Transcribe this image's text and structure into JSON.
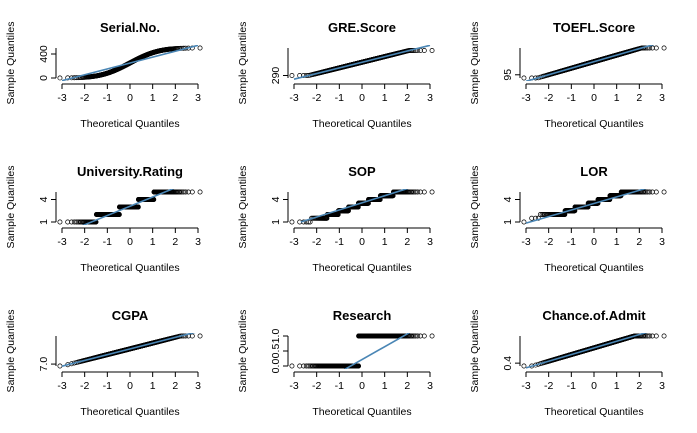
{
  "figure": {
    "xlabel": "Theoretical Quantiles",
    "ylabel": "Sample Quantiles"
  },
  "colors": {
    "points": "#000000",
    "line": "#4a86b5",
    "axis": "#000000"
  },
  "chart_data": [
    {
      "type": "scatter",
      "title": "Serial.No.",
      "xlabel": "Theoretical Quantiles",
      "ylabel": "Sample Quantiles",
      "xlim": [
        -3,
        3
      ],
      "xticks": [
        -3,
        -2,
        -1,
        0,
        1,
        2,
        3
      ],
      "xtick_labels": [
        "-3",
        "-2",
        "-1",
        "0",
        "1",
        "2",
        "3"
      ],
      "yaxis": [
        0,
        500
      ],
      "ytick_values": [
        0,
        400
      ],
      "ytick_labels": [
        "0",
        "400"
      ],
      "points": {
        "kind": "continuous",
        "n": 500,
        "min": 1,
        "max": 500,
        "dist": "uniform"
      },
      "ref_line": [
        [
          -3,
          -45
        ],
        [
          3,
          545
        ]
      ]
    },
    {
      "type": "scatter",
      "title": "GRE.Score",
      "xlabel": "Theoretical Quantiles",
      "ylabel": "Sample Quantiles",
      "xlim": [
        -3,
        3
      ],
      "xticks": [
        -3,
        -2,
        -1,
        0,
        1,
        2,
        3
      ],
      "xtick_labels": [
        "-3",
        "-2",
        "-1",
        "0",
        "1",
        "2",
        "3"
      ],
      "yaxis": [
        285,
        345
      ],
      "ytick_values": [
        290
      ],
      "ytick_labels": [
        "290"
      ],
      "points": {
        "kind": "continuous",
        "n": 500,
        "min": 290,
        "max": 340,
        "dist": "normal",
        "mean": 316.5,
        "sd": 11.3
      },
      "ref_line": [
        [
          -3,
          282.6
        ],
        [
          3,
          350.4
        ]
      ]
    },
    {
      "type": "scatter",
      "title": "TOEFL.Score",
      "xlabel": "Theoretical Quantiles",
      "ylabel": "Sample Quantiles",
      "xlim": [
        -3,
        3
      ],
      "xticks": [
        -3,
        -2,
        -1,
        0,
        1,
        2,
        3
      ],
      "xtick_labels": [
        "-3",
        "-2",
        "-1",
        "0",
        "1",
        "2",
        "3"
      ],
      "yaxis": [
        92,
        120
      ],
      "ytick_values": [
        95
      ],
      "ytick_labels": [
        "95"
      ],
      "points": {
        "kind": "continuous",
        "n": 500,
        "min": 92,
        "max": 120,
        "dist": "normal",
        "mean": 107.2,
        "sd": 6.1
      },
      "ref_line": [
        [
          -3,
          88.9
        ],
        [
          3,
          125.5
        ]
      ]
    },
    {
      "type": "scatter",
      "title": "University.Rating",
      "xlabel": "Theoretical Quantiles",
      "ylabel": "Sample Quantiles",
      "xlim": [
        -3,
        3
      ],
      "xticks": [
        -3,
        -2,
        -1,
        0,
        1,
        2,
        3
      ],
      "xtick_labels": [
        "-3",
        "-2",
        "-1",
        "0",
        "1",
        "2",
        "3"
      ],
      "yaxis": [
        1,
        5
      ],
      "ytick_values": [
        1,
        4
      ],
      "ytick_labels": [
        "1",
        "4"
      ],
      "points": {
        "kind": "discrete",
        "n": 500,
        "levels": [
          1,
          2,
          3,
          4,
          5
        ],
        "proportions": [
          0.068,
          0.252,
          0.324,
          0.21,
          0.146
        ]
      },
      "ref_line": [
        [
          -3,
          -0.6
        ],
        [
          3,
          6.8
        ]
      ]
    },
    {
      "type": "scatter",
      "title": "SOP",
      "xlabel": "Theoretical Quantiles",
      "ylabel": "Sample Quantiles",
      "xlim": [
        -3,
        3
      ],
      "xticks": [
        -3,
        -2,
        -1,
        0,
        1,
        2,
        3
      ],
      "xtick_labels": [
        "-3",
        "-2",
        "-1",
        "0",
        "1",
        "2",
        "3"
      ],
      "yaxis": [
        1,
        5
      ],
      "ytick_values": [
        1,
        4
      ],
      "ytick_labels": [
        "1",
        "4"
      ],
      "points": {
        "kind": "discrete",
        "n": 500,
        "levels": [
          1,
          1.5,
          2,
          2.5,
          3,
          3.5,
          4,
          4.5,
          5
        ],
        "proportions": [
          0.012,
          0.05,
          0.086,
          0.128,
          0.16,
          0.176,
          0.178,
          0.126,
          0.084
        ]
      },
      "ref_line": [
        [
          -2.7,
          1
        ],
        [
          3,
          6.4
        ]
      ]
    },
    {
      "type": "scatter",
      "title": "LOR",
      "xlabel": "Theoretical Quantiles",
      "ylabel": "Sample Quantiles",
      "xlim": [
        -3,
        3
      ],
      "xticks": [
        -3,
        -2,
        -1,
        0,
        1,
        2,
        3
      ],
      "xtick_labels": [
        "-3",
        "-2",
        "-1",
        "0",
        "1",
        "2",
        "3"
      ],
      "yaxis": [
        1,
        5
      ],
      "ytick_values": [
        1,
        4
      ],
      "ytick_labels": [
        "1",
        "4"
      ],
      "points": {
        "kind": "discrete",
        "n": 500,
        "levels": [
          1,
          1.5,
          2,
          2.5,
          3,
          3.5,
          4,
          4.5,
          5
        ],
        "proportions": [
          0.002,
          0.006,
          0.092,
          0.1,
          0.198,
          0.172,
          0.188,
          0.126,
          0.116
        ]
      },
      "ref_line": [
        [
          -3,
          0.85
        ],
        [
          3,
          6.1
        ]
      ]
    },
    {
      "type": "scatter",
      "title": "CGPA",
      "xlabel": "Theoretical Quantiles",
      "ylabel": "Sample Quantiles",
      "xlim": [
        -3,
        3
      ],
      "xticks": [
        -3,
        -2,
        -1,
        0,
        1,
        2,
        3
      ],
      "xtick_labels": [
        "-3",
        "-2",
        "-1",
        "0",
        "1",
        "2",
        "3"
      ],
      "yaxis": [
        6.8,
        9.92
      ],
      "ytick_values": [
        7.0
      ],
      "ytick_labels": [
        "7.0"
      ],
      "points": {
        "kind": "continuous",
        "n": 500,
        "min": 6.8,
        "max": 9.92,
        "dist": "normal",
        "mean": 8.58,
        "sd": 0.6
      },
      "ref_line": [
        [
          -3,
          6.78
        ],
        [
          3,
          10.38
        ]
      ]
    },
    {
      "type": "scatter",
      "title": "Research",
      "xlabel": "Theoretical Quantiles",
      "ylabel": "Sample Quantiles",
      "xlim": [
        -3,
        3
      ],
      "xticks": [
        -3,
        -2,
        -1,
        0,
        1,
        2,
        3
      ],
      "xtick_labels": [
        "-3",
        "-2",
        "-1",
        "0",
        "1",
        "2",
        "3"
      ],
      "yaxis": [
        0,
        1
      ],
      "ytick_values": [
        0.0,
        0.5,
        1.0
      ],
      "ytick_labels": [
        "0.0",
        "0.5",
        "1.0"
      ],
      "points": {
        "kind": "discrete",
        "n": 500,
        "levels": [
          0,
          1
        ],
        "proportions": [
          0.44,
          0.56
        ]
      },
      "ref_line": [
        [
          -1.2,
          -0.3
        ],
        [
          3,
          1.5
        ]
      ]
    },
    {
      "type": "scatter",
      "title": "Chance.of.Admit",
      "xlabel": "Theoretical Quantiles",
      "ylabel": "Sample Quantiles",
      "xlim": [
        -3,
        3
      ],
      "xticks": [
        -3,
        -2,
        -1,
        0,
        1,
        2,
        3
      ],
      "xtick_labels": [
        "-3",
        "-2",
        "-1",
        "0",
        "1",
        "2",
        "3"
      ],
      "yaxis": [
        0.34,
        0.97
      ],
      "ytick_values": [
        0.4
      ],
      "ytick_labels": [
        "0.4"
      ],
      "points": {
        "kind": "continuous",
        "n": 500,
        "min": 0.34,
        "max": 0.97,
        "dist": "normal",
        "mean": 0.72,
        "sd": 0.14
      },
      "ref_line": [
        [
          -3,
          0.3
        ],
        [
          3,
          1.14
        ]
      ]
    }
  ]
}
